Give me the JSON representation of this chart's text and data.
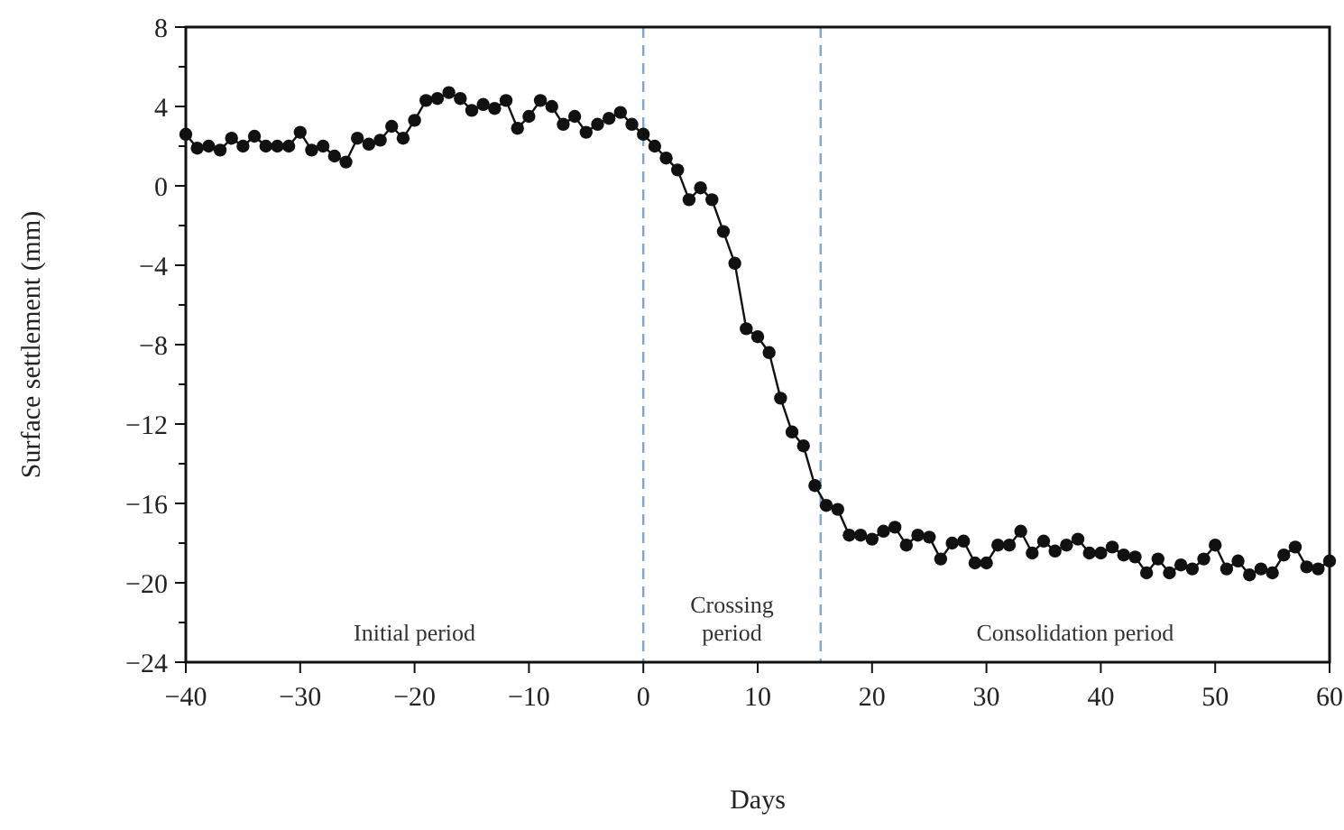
{
  "chart_data": {
    "type": "line",
    "xlabel": "Days",
    "ylabel": "Surface settlement (mm)",
    "x": [
      -40,
      -39,
      -38,
      -37,
      -36,
      -35,
      -34,
      -33,
      -32,
      -31,
      -30,
      -29,
      -28,
      -27,
      -26,
      -25,
      -24,
      -23,
      -22,
      -21,
      -20,
      -19,
      -18,
      -17,
      -16,
      -15,
      -14,
      -13,
      -12,
      -11,
      -10,
      -9,
      -8,
      -7,
      -6,
      -5,
      -4,
      -3,
      -2,
      -1,
      0,
      1,
      2,
      3,
      4,
      5,
      6,
      7,
      8,
      9,
      10,
      11,
      12,
      13,
      14,
      15,
      16,
      17,
      18,
      19,
      20,
      21,
      22,
      23,
      24,
      25,
      26,
      27,
      28,
      29,
      30,
      31,
      32,
      33,
      34,
      35,
      36,
      37,
      38,
      39,
      40,
      41,
      42,
      43,
      44,
      45,
      46,
      47,
      48,
      49,
      50,
      51,
      52,
      53,
      54,
      55,
      56,
      57,
      58,
      59,
      60
    ],
    "series": [
      {
        "color": "#111111",
        "values": [
          2.6,
          1.9,
          2.0,
          1.8,
          2.4,
          2.0,
          2.5,
          2.0,
          2.0,
          2.0,
          2.7,
          1.8,
          2.0,
          1.5,
          1.2,
          2.4,
          2.1,
          2.3,
          3.0,
          2.4,
          3.3,
          4.3,
          4.4,
          4.7,
          4.4,
          3.8,
          4.1,
          3.9,
          4.3,
          2.9,
          3.5,
          4.3,
          4.0,
          3.1,
          3.5,
          2.7,
          3.1,
          3.4,
          3.7,
          3.1,
          2.6,
          2.0,
          1.4,
          0.8,
          -0.7,
          -0.1,
          -0.7,
          -2.3,
          -3.9,
          -7.2,
          -7.6,
          -8.4,
          -10.7,
          -12.4,
          -13.1,
          -15.1,
          -16.1,
          -16.3,
          -17.6,
          -17.6,
          -17.8,
          -17.4,
          -17.2,
          -18.1,
          -17.6,
          -17.7,
          -18.8,
          -18.0,
          -17.9,
          -19.0,
          -19.0,
          -18.1,
          -18.1,
          -17.4,
          -18.5,
          -17.9,
          -18.4,
          -18.1,
          -17.8,
          -18.5,
          -18.5,
          -18.2,
          -18.6,
          -18.7,
          -19.5,
          -18.8,
          -19.5,
          -19.1,
          -19.3,
          -18.8,
          -18.1,
          -19.3,
          -18.9,
          -19.6,
          -19.3,
          -19.5,
          -18.6,
          -18.2,
          -19.2,
          -19.3,
          -18.9
        ]
      }
    ],
    "marker": "circle",
    "line_style": "solid",
    "grid": false,
    "xlim": [
      -40,
      60
    ],
    "xticks": [
      {
        "value": -40,
        "label": "−40"
      },
      {
        "value": -30,
        "label": "−30"
      },
      {
        "value": -20,
        "label": "−20"
      },
      {
        "value": -10,
        "label": "−10"
      },
      0,
      10,
      20,
      30,
      40,
      50,
      60
    ],
    "ylim": [
      -24,
      8
    ],
    "yticks": [
      {
        "value": -24,
        "label": "−24"
      },
      {
        "value": -22,
        "label": null
      },
      {
        "value": -20,
        "label": "−20"
      },
      {
        "value": -18,
        "label": null
      },
      {
        "value": -16,
        "label": "−16"
      },
      {
        "value": -14,
        "label": null
      },
      {
        "value": -12,
        "label": "−12"
      },
      {
        "value": -10,
        "label": null
      },
      {
        "value": -8,
        "label": "−8"
      },
      {
        "value": -6,
        "label": null
      },
      {
        "value": -4,
        "label": "−4"
      },
      {
        "value": -2,
        "label": null
      },
      0,
      {
        "value": 2,
        "label": null
      },
      4,
      {
        "value": 6,
        "label": null
      },
      8
    ],
    "ref_lines": [
      {
        "axis": "x",
        "value": 0,
        "color": "#7fa6cf",
        "line_style": "dashed"
      },
      {
        "axis": "x",
        "value": 15.5,
        "color": "#7fa6cf",
        "line_style": "dashed"
      }
    ],
    "annotations": [
      "Initial period",
      "Crossing\nperiod",
      "Consolidation period"
    ]
  }
}
